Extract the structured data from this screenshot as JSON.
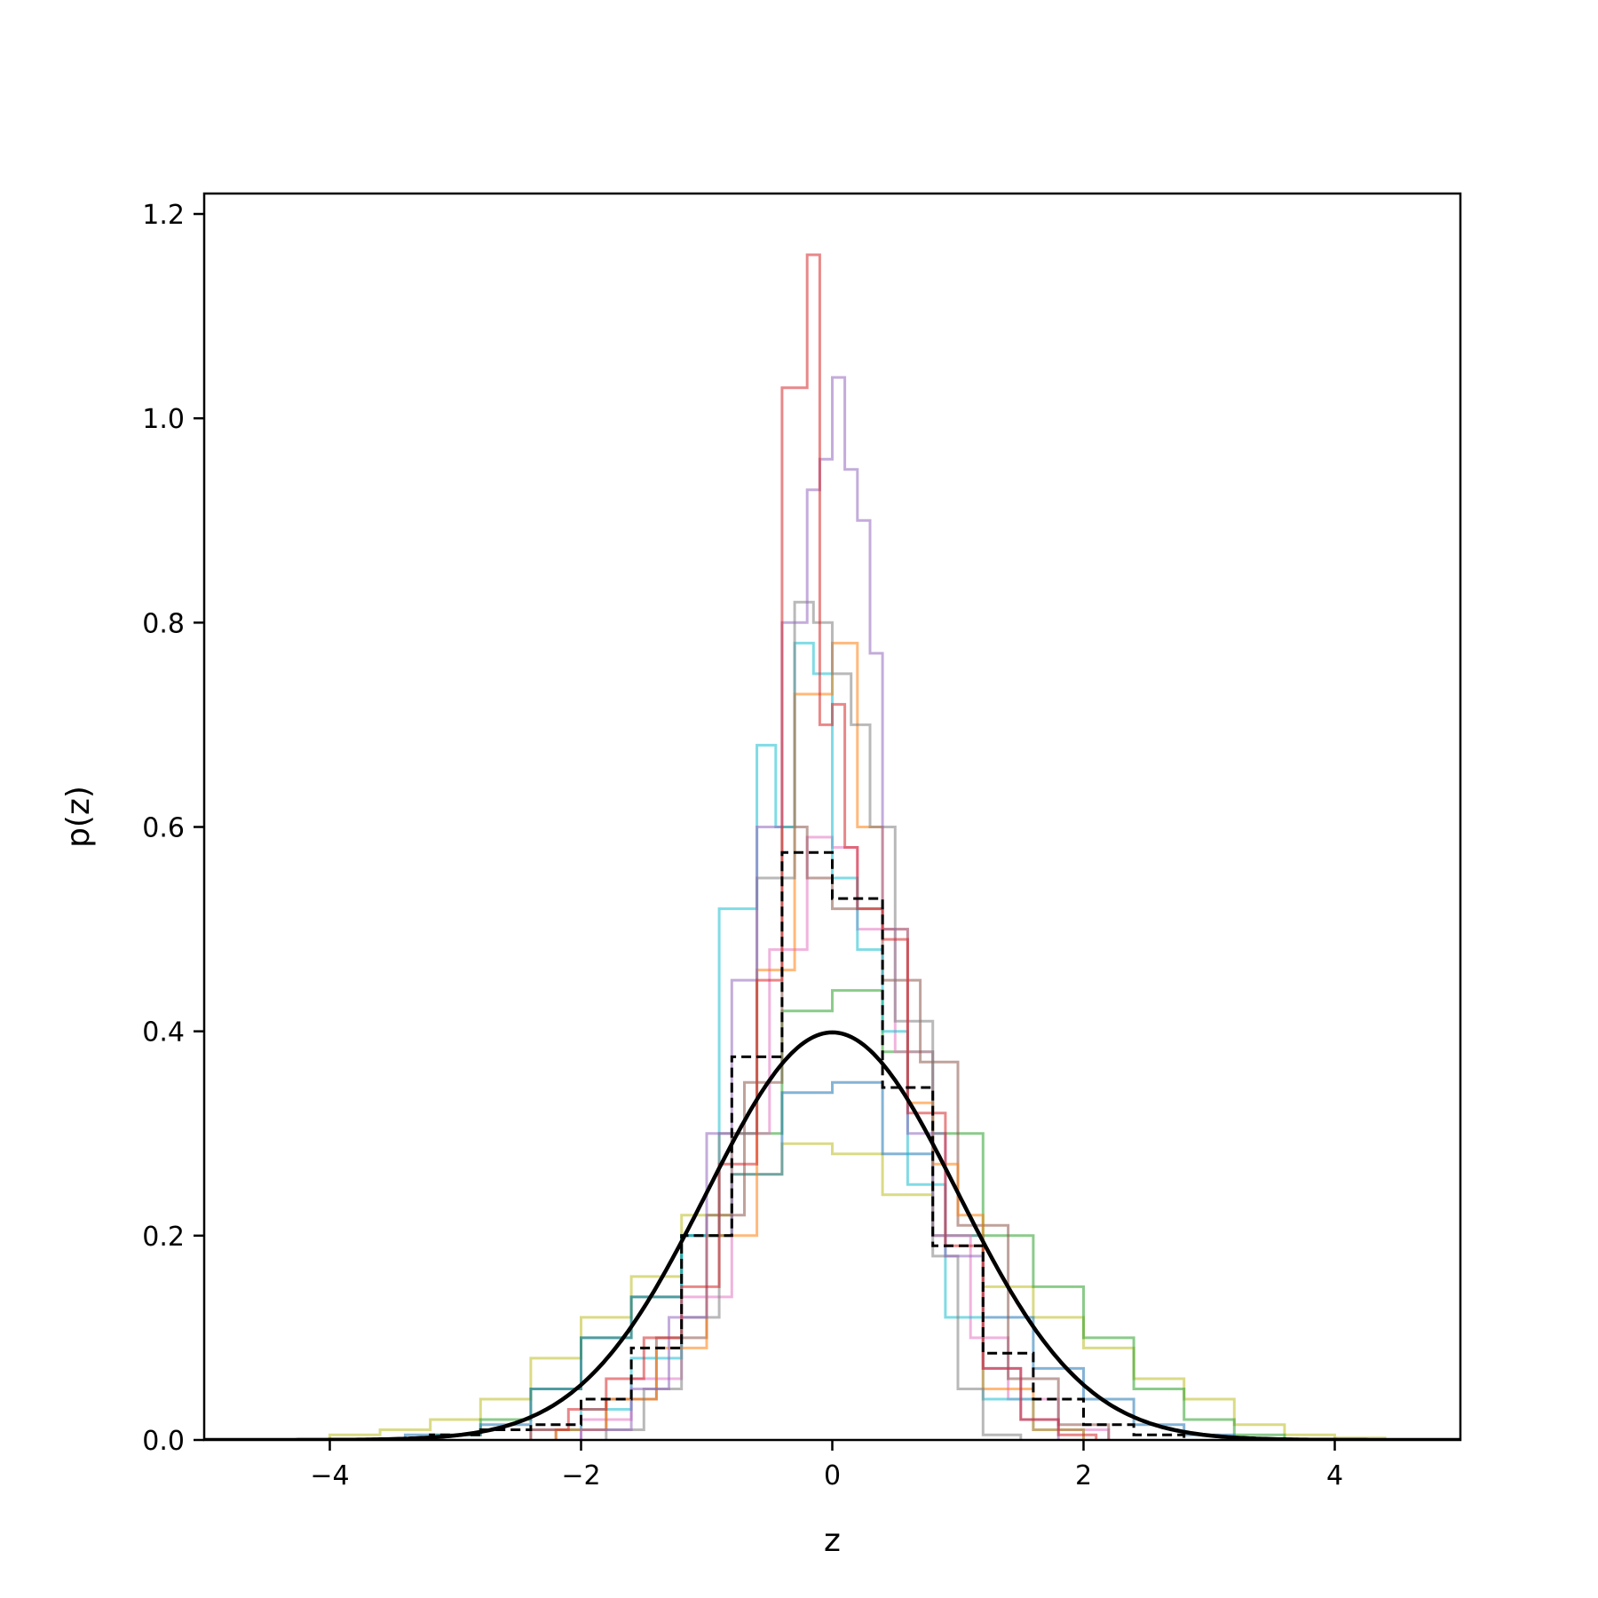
{
  "chart_data": {
    "type": "histogram",
    "title": "",
    "xlabel": "z",
    "ylabel": "p(z)",
    "xlim": [
      -5,
      5
    ],
    "ylim": [
      0,
      1.22
    ],
    "xticks": [
      -4,
      -2,
      0,
      2,
      4
    ],
    "xtick_labels": [
      "−4",
      "−2",
      "0",
      "2",
      "4"
    ],
    "yticks": [
      0.0,
      0.2,
      0.4,
      0.6,
      0.8,
      1.0,
      1.2
    ],
    "ytick_labels": [
      "0.0",
      "0.2",
      "0.4",
      "0.6",
      "0.8",
      "1.0",
      "1.2"
    ],
    "grid": false,
    "legend": "none",
    "reference_curve": {
      "style": "solid-black",
      "mean": 0,
      "std": 1,
      "peak": 0.4
    },
    "series": [
      {
        "color": "#000000",
        "style": "dashed",
        "edges": [
          -3.2,
          -2.8,
          -2.4,
          -2.0,
          -1.6,
          -1.2,
          -0.8,
          -0.4,
          0.0,
          0.4,
          0.8,
          1.2,
          1.6,
          2.0,
          2.4,
          2.8
        ],
        "values": [
          0.005,
          0.01,
          0.015,
          0.04,
          0.09,
          0.2,
          0.375,
          0.575,
          0.53,
          0.345,
          0.19,
          0.085,
          0.04,
          0.015,
          0.005
        ]
      },
      {
        "color": "#d62728",
        "edges": [
          -2.4,
          -2.1,
          -1.8,
          -1.5,
          -1.2,
          -0.9,
          -0.6,
          -0.4,
          -0.2,
          -0.1,
          0.0,
          0.1,
          0.2,
          0.4,
          0.6,
          0.9,
          1.2,
          1.5,
          1.8,
          2.1
        ],
        "values": [
          0.01,
          0.03,
          0.06,
          0.1,
          0.15,
          0.27,
          0.45,
          1.03,
          1.16,
          0.7,
          0.72,
          0.58,
          0.52,
          0.49,
          0.32,
          0.19,
          0.07,
          0.02,
          0.005
        ]
      },
      {
        "color": "#9467bd",
        "edges": [
          -2.0,
          -1.6,
          -1.3,
          -1.0,
          -0.8,
          -0.6,
          -0.4,
          -0.2,
          -0.1,
          0.0,
          0.1,
          0.2,
          0.3,
          0.4,
          0.6,
          0.9,
          1.2,
          1.5,
          1.8
        ],
        "values": [
          0.01,
          0.05,
          0.12,
          0.3,
          0.45,
          0.6,
          0.8,
          0.93,
          0.96,
          1.04,
          0.95,
          0.9,
          0.77,
          0.5,
          0.3,
          0.18,
          0.07,
          0.02
        ]
      },
      {
        "color": "#7f7f7f",
        "edges": [
          -1.8,
          -1.5,
          -1.2,
          -0.9,
          -0.6,
          -0.3,
          -0.15,
          0.0,
          0.15,
          0.3,
          0.5,
          0.8,
          1.0,
          1.2,
          1.5
        ],
        "values": [
          0.01,
          0.05,
          0.12,
          0.3,
          0.55,
          0.82,
          0.8,
          0.75,
          0.7,
          0.6,
          0.41,
          0.18,
          0.05,
          0.005
        ]
      },
      {
        "color": "#ff7f0e",
        "edges": [
          -2.2,
          -1.8,
          -1.4,
          -1.0,
          -0.6,
          -0.3,
          0.0,
          0.2,
          0.4,
          0.6,
          0.8,
          1.0,
          1.2,
          1.6,
          2.0
        ],
        "values": [
          0.01,
          0.04,
          0.09,
          0.2,
          0.46,
          0.73,
          0.78,
          0.6,
          0.5,
          0.33,
          0.27,
          0.22,
          0.05,
          0.01
        ]
      },
      {
        "color": "#17becf",
        "edges": [
          -2.4,
          -2.0,
          -1.6,
          -1.2,
          -0.9,
          -0.6,
          -0.45,
          -0.3,
          -0.15,
          0.0,
          0.2,
          0.4,
          0.6,
          0.9,
          1.2,
          1.6,
          2.0
        ],
        "values": [
          0.01,
          0.03,
          0.08,
          0.2,
          0.52,
          0.68,
          0.6,
          0.78,
          0.75,
          0.55,
          0.48,
          0.4,
          0.25,
          0.12,
          0.04,
          0.01
        ]
      },
      {
        "color": "#8c564b",
        "edges": [
          -2.2,
          -1.8,
          -1.4,
          -1.0,
          -0.7,
          -0.4,
          -0.2,
          0.0,
          0.2,
          0.4,
          0.7,
          1.0,
          1.4,
          1.8,
          2.2
        ],
        "values": [
          0.01,
          0.04,
          0.1,
          0.22,
          0.35,
          0.6,
          0.55,
          0.52,
          0.52,
          0.45,
          0.37,
          0.21,
          0.06,
          0.015
        ]
      },
      {
        "color": "#e377c2",
        "edges": [
          -2.0,
          -1.6,
          -1.2,
          -0.8,
          -0.5,
          -0.2,
          0.0,
          0.2,
          0.5,
          0.8,
          1.1,
          1.4,
          1.8,
          2.2
        ],
        "values": [
          0.02,
          0.06,
          0.14,
          0.3,
          0.48,
          0.59,
          0.58,
          0.5,
          0.38,
          0.2,
          0.1,
          0.04,
          0.01
        ]
      },
      {
        "color": "#1f77b4",
        "edges": [
          -3.4,
          -2.8,
          -2.4,
          -2.0,
          -1.6,
          -1.2,
          -0.8,
          -0.4,
          0.0,
          0.4,
          0.8,
          1.2,
          1.6,
          2.0,
          2.4,
          2.8,
          3.2
        ],
        "values": [
          0.005,
          0.015,
          0.05,
          0.1,
          0.14,
          0.2,
          0.26,
          0.34,
          0.35,
          0.28,
          0.2,
          0.12,
          0.07,
          0.04,
          0.015,
          0.005
        ]
      },
      {
        "color": "#2ca02c",
        "edges": [
          -3.2,
          -2.8,
          -2.4,
          -2.0,
          -1.6,
          -1.2,
          -0.8,
          -0.4,
          0.0,
          0.4,
          0.8,
          1.2,
          1.6,
          2.0,
          2.4,
          2.8,
          3.2,
          3.6
        ],
        "values": [
          0.005,
          0.02,
          0.05,
          0.1,
          0.14,
          0.2,
          0.3,
          0.42,
          0.44,
          0.38,
          0.3,
          0.2,
          0.15,
          0.1,
          0.05,
          0.02,
          0.005
        ]
      },
      {
        "color": "#bcbd22",
        "edges": [
          -4.0,
          -3.6,
          -3.2,
          -2.8,
          -2.4,
          -2.0,
          -1.6,
          -1.2,
          -0.8,
          -0.4,
          0.0,
          0.4,
          0.8,
          1.2,
          1.6,
          2.0,
          2.4,
          2.8,
          3.2,
          3.6,
          4.0,
          4.4
        ],
        "values": [
          0.005,
          0.01,
          0.02,
          0.04,
          0.08,
          0.12,
          0.16,
          0.22,
          0.26,
          0.29,
          0.28,
          0.24,
          0.2,
          0.15,
          0.12,
          0.09,
          0.06,
          0.04,
          0.015,
          0.005,
          0.002
        ]
      }
    ]
  }
}
